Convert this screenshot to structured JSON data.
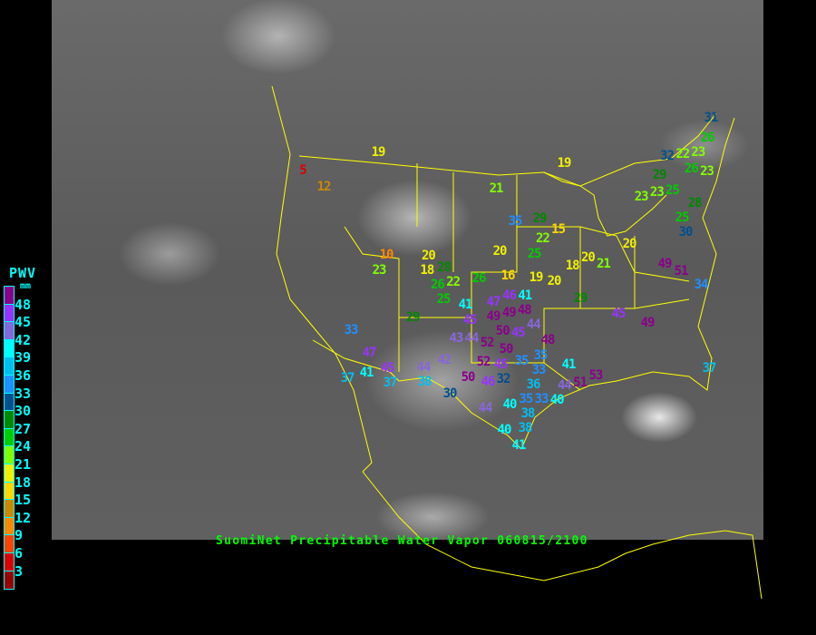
{
  "caption": "SuomiNet Precipitable Water Vapor 060815/2100",
  "legend": {
    "title": "PWV",
    "unit": "mm",
    "labels": [
      "48",
      "45",
      "42",
      "39",
      "36",
      "33",
      "30",
      "27",
      "24",
      "21",
      "18",
      "15",
      "12",
      "9",
      "6",
      "3"
    ],
    "colors": [
      "#8b008b",
      "#9933ff",
      "#8866dd",
      "#00ffff",
      "#00bfef",
      "#1e90ff",
      "#00508f",
      "#008800",
      "#00cc00",
      "#80ff00",
      "#f0f000",
      "#ffd700",
      "#cc8800",
      "#ff8800",
      "#ff4400",
      "#dd0000",
      "#990000"
    ]
  },
  "map_colors": {
    "borders": "#ffff00",
    "caption": "#00ff00",
    "legend_text": "#00ffff"
  },
  "stations": [
    "5",
    "12",
    "19",
    "10",
    "23",
    "20",
    "18",
    "28",
    "26",
    "22",
    "26",
    "25",
    "41",
    "29",
    "33",
    "47",
    "45",
    "41",
    "37",
    "37",
    "38",
    "44",
    "42",
    "43",
    "44",
    "45",
    "52",
    "50",
    "52",
    "45",
    "50",
    "46",
    "32",
    "30",
    "44",
    "40",
    "40",
    "41",
    "35",
    "35",
    "33",
    "41",
    "36",
    "35",
    "33",
    "40",
    "38",
    "38",
    "44",
    "51",
    "53",
    "48",
    "44",
    "49",
    "46",
    "41",
    "47",
    "49",
    "50",
    "45",
    "48",
    "21",
    "35",
    "29",
    "15",
    "22",
    "25",
    "20",
    "16",
    "19",
    "20",
    "18",
    "20",
    "21",
    "20",
    "19",
    "29",
    "49",
    "51",
    "34",
    "45",
    "49",
    "37",
    "31",
    "26",
    "32",
    "22",
    "23",
    "26",
    "23",
    "29",
    "23",
    "23",
    "25",
    "28",
    "25",
    "30"
  ]
}
